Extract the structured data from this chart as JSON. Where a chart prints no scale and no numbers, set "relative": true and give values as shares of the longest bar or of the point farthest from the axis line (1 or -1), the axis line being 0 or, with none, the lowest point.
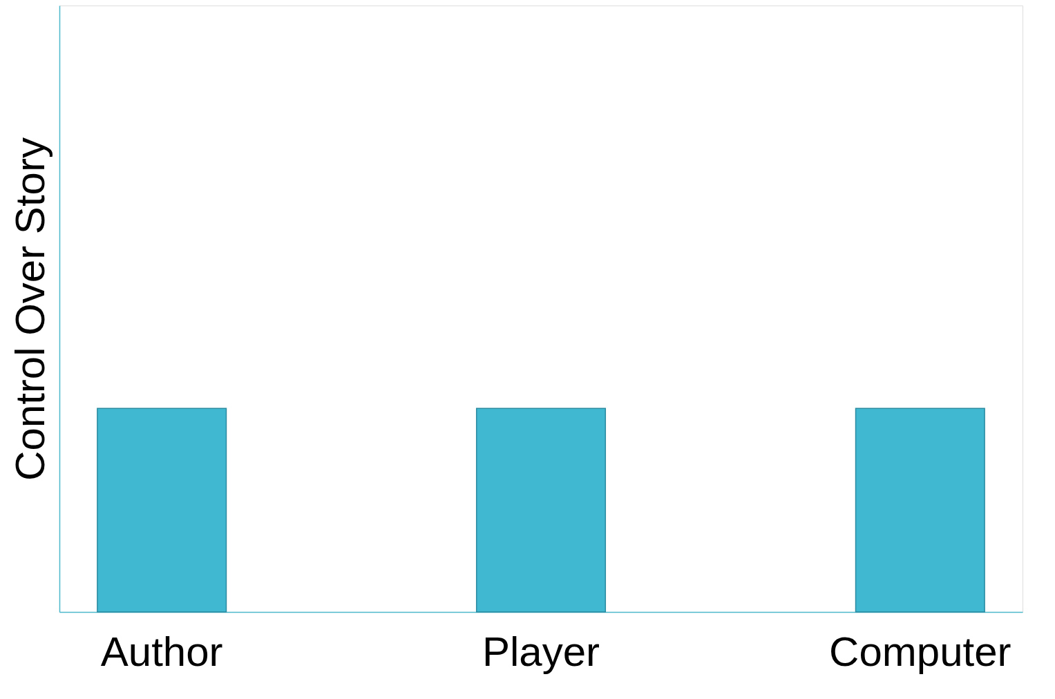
{
  "chart_data": {
    "type": "bar",
    "ylabel": "Control Over Story",
    "relative": true,
    "categories": [
      "Author",
      "Player",
      "Computer"
    ],
    "series": [
      {
        "color": "#41b8d2",
        "values": [
          1,
          1,
          1
        ]
      }
    ],
    "grid": false
  }
}
